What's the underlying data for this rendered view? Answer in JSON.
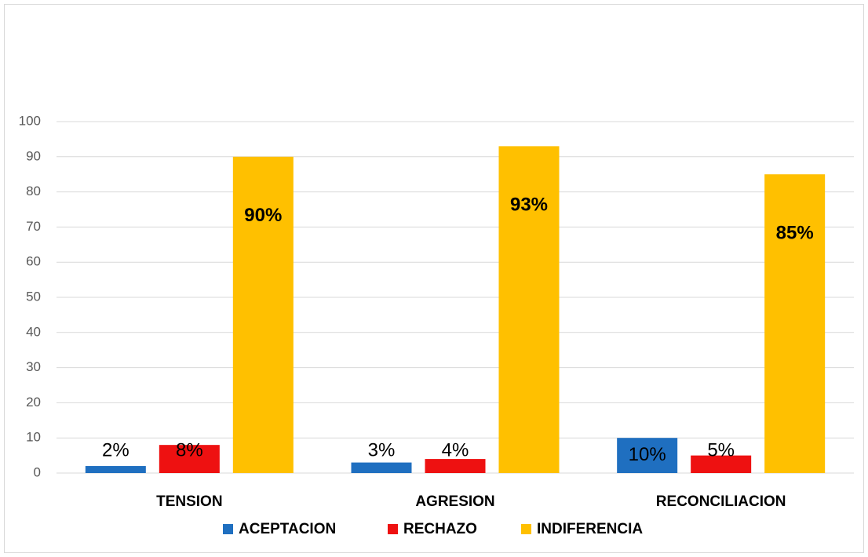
{
  "chart_data": {
    "type": "bar",
    "categories": [
      "TENSION",
      "AGRESION",
      "RECONCILIACION"
    ],
    "series": [
      {
        "name": "ACEPTACION",
        "color": "#1f6fc0",
        "values": [
          2,
          3,
          10
        ],
        "value_labels": [
          "2%",
          "3%",
          "10%"
        ]
      },
      {
        "name": "RECHAZO",
        "color": "#ee1111",
        "values": [
          8,
          4,
          5
        ],
        "value_labels": [
          "8%",
          "4%",
          "5%"
        ]
      },
      {
        "name": "INDIFERENCIA",
        "color": "#ffc000",
        "values": [
          90,
          93,
          85
        ],
        "value_labels": [
          "90%",
          "93%",
          "85%"
        ]
      }
    ],
    "ylim": [
      0,
      100
    ],
    "yticks": [
      0,
      10,
      20,
      30,
      40,
      50,
      60,
      70,
      80,
      90,
      100
    ],
    "grid": true,
    "legend": "bottom"
  }
}
